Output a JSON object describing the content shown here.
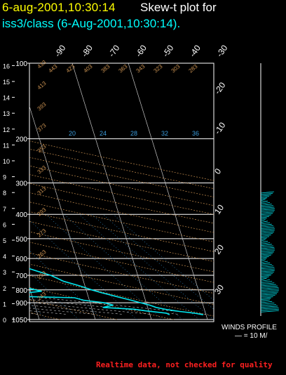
{
  "header": {
    "date_time": "6-aug-2001,10:30:14",
    "title": "Skew-t plot for",
    "subtitle": "iss3/class (6-Aug-2001,10:30:14)."
  },
  "footer": {
    "notice": "Realtime data, not checked for quality"
  },
  "winds": {
    "label": "WINDS PROFILE",
    "scale": "— = 10 M/"
  },
  "colors": {
    "background": "#000000",
    "date": "#ffff00",
    "subtitle": "#00ffff",
    "sounding": "#00e5ee",
    "isobar": "#ffffff",
    "isotherm": "#c8c8c8",
    "dry_adiabat": "#c89050",
    "moist_adiabat": "#c8c8c8",
    "mixing_ratio": "#3a9ad9",
    "notice": "#ff2020"
  },
  "chart_data": {
    "type": "line",
    "pressure_levels": [
      "100",
      "200",
      "300",
      "400",
      "500",
      "600",
      "700",
      "800",
      "900",
      "1050"
    ],
    "pressure_range": [
      1050,
      100
    ],
    "height_ticks_km": [
      "0",
      "1",
      "2",
      "3",
      "4",
      "5",
      "6",
      "7",
      "8",
      "9",
      "10",
      "11",
      "12",
      "13",
      "14",
      "15",
      "16"
    ],
    "isotherm_labels": [
      "-90",
      "-80",
      "-70",
      "-60",
      "-50",
      "-40",
      "-30",
      "-20",
      "-10",
      "0",
      "10",
      "20",
      "30"
    ],
    "isotherms_c": [
      -90,
      -80,
      -70,
      -60,
      -50,
      -40,
      -30,
      -20,
      -10,
      0,
      10,
      20,
      30
    ],
    "mixing_ratio_labels": [
      "20",
      "24",
      "28",
      "32",
      "36"
    ],
    "theta_labels": [
      "433",
      "413",
      "393",
      "373",
      "353",
      "333",
      "313",
      "293",
      "273",
      "263",
      "253",
      "243",
      "443",
      "423",
      "403",
      "383",
      "363",
      "343",
      "323",
      "303",
      "283"
    ],
    "series": [
      {
        "type": "temperature",
        "points": [
          {
            "p": 1005,
            "t": 29.5
          },
          {
            "p": 990,
            "t": 28.0
          },
          {
            "p": 975,
            "t": 25.5
          },
          {
            "p": 960,
            "t": 23.5
          },
          {
            "p": 940,
            "t": 21.5
          },
          {
            "p": 920,
            "t": 20.5
          },
          {
            "p": 900,
            "t": 19.0
          },
          {
            "p": 880,
            "t": 17.5
          },
          {
            "p": 850,
            "t": 15.0
          },
          {
            "p": 820,
            "t": 12.5
          },
          {
            "p": 800,
            "t": 11.0
          },
          {
            "p": 770,
            "t": 9.0
          },
          {
            "p": 740,
            "t": 6.5
          },
          {
            "p": 700,
            "t": 4.5
          },
          {
            "p": 670,
            "t": 2.0
          },
          {
            "p": 640,
            "t": -0.5
          },
          {
            "p": 610,
            "t": -3.0
          },
          {
            "p": 580,
            "t": -5.5
          },
          {
            "p": 550,
            "t": -8.0
          },
          {
            "p": 520,
            "t": -10.5
          },
          {
            "p": 500,
            "t": -12.5
          },
          {
            "p": 470,
            "t": -15.5
          },
          {
            "p": 450,
            "t": -17.5
          },
          {
            "p": 430,
            "t": -20.5
          },
          {
            "p": 410,
            "t": -23.0
          },
          {
            "p": 390,
            "t": -25.0
          },
          {
            "p": 370,
            "t": -27.5
          },
          {
            "p": 350,
            "t": -31.0
          },
          {
            "p": 330,
            "t": -34.5
          },
          {
            "p": 318,
            "t": -37.0
          },
          {
            "p": 305,
            "t": -39.0
          }
        ]
      },
      {
        "type": "dewpoint",
        "points": [
          {
            "p": 1005,
            "t": 23.5
          },
          {
            "p": 990,
            "t": 23.0
          },
          {
            "p": 970,
            "t": 19.5
          },
          {
            "p": 955,
            "t": 17.5
          },
          {
            "p": 940,
            "t": 12.0
          },
          {
            "p": 920,
            "t": 14.0
          },
          {
            "p": 900,
            "t": 12.5
          },
          {
            "p": 880,
            "t": 9.0
          },
          {
            "p": 860,
            "t": 7.5
          },
          {
            "p": 850,
            "t": -2.0
          },
          {
            "p": 840,
            "t": -4.5
          },
          {
            "p": 830,
            "t": -2.5
          },
          {
            "p": 810,
            "t": 2.0
          },
          {
            "p": 790,
            "t": 0.0
          },
          {
            "p": 770,
            "t": -1.0
          },
          {
            "p": 755,
            "t": -4.0
          },
          {
            "p": 745,
            "t": -9.0
          },
          {
            "p": 735,
            "t": -15.0
          },
          {
            "p": 720,
            "t": -13.0
          },
          {
            "p": 705,
            "t": -18.0
          },
          {
            "p": 690,
            "t": -14.5
          },
          {
            "p": 670,
            "t": -15.0
          },
          {
            "p": 650,
            "t": -19.0
          },
          {
            "p": 630,
            "t": -22.5
          },
          {
            "p": 610,
            "t": -23.5
          },
          {
            "p": 590,
            "t": -24.0
          },
          {
            "p": 575,
            "t": -27.0
          },
          {
            "p": 560,
            "t": -30.0
          },
          {
            "p": 545,
            "t": -28.0
          },
          {
            "p": 530,
            "t": -31.5
          },
          {
            "p": 515,
            "t": -34.0
          },
          {
            "p": 500,
            "t": -35.0
          },
          {
            "p": 480,
            "t": -39.0
          },
          {
            "p": 460,
            "t": -43.0
          },
          {
            "p": 450,
            "t": -40.5
          },
          {
            "p": 440,
            "t": -44.0
          },
          {
            "p": 430,
            "t": -47.0
          },
          {
            "p": 420,
            "t": -51.0
          },
          {
            "p": 405,
            "t": -55.0
          },
          {
            "p": 395,
            "t": -58.5
          },
          {
            "p": 385,
            "t": -60.0
          },
          {
            "p": 372,
            "t": -53.5
          },
          {
            "p": 360,
            "t": -52.0
          },
          {
            "p": 350,
            "t": -54.0
          },
          {
            "p": 340,
            "t": -58.0
          },
          {
            "p": 332,
            "t": -61.0
          },
          {
            "p": 325,
            "t": -63.5
          },
          {
            "p": 316,
            "t": -65.0
          }
        ]
      }
    ]
  }
}
